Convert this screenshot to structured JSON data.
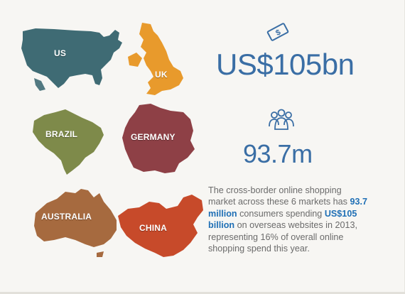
{
  "maps": {
    "us": "US",
    "uk": "UK",
    "brazil": "BRAZIL",
    "germany": "GERMANY",
    "australia": "AUSTRALIA",
    "china": "CHINA"
  },
  "stats": {
    "spend": {
      "icon": "money-bill-icon",
      "value": "US$105bn"
    },
    "consumers": {
      "icon": "people-group-icon",
      "value": "93.7m"
    }
  },
  "description": {
    "part1": "The cross-border online shopping market across these 6 markets has ",
    "highlight1": "93.7 million",
    "part2": " consumers spending ",
    "highlight2": "US$105 billion",
    "part3": " on overseas websites in 2013, representing 16% of overall online shopping spend this year."
  },
  "colors": {
    "us": "#3f6b74",
    "uk": "#e89a2c",
    "brazil": "#7e8a4a",
    "germany": "#8e4046",
    "australia": "#a66a3f",
    "china": "#c74a2a",
    "stat_blue": "#3a6ea5",
    "highlight_blue": "#1f6fb5",
    "body_text": "#6b6b6b"
  }
}
